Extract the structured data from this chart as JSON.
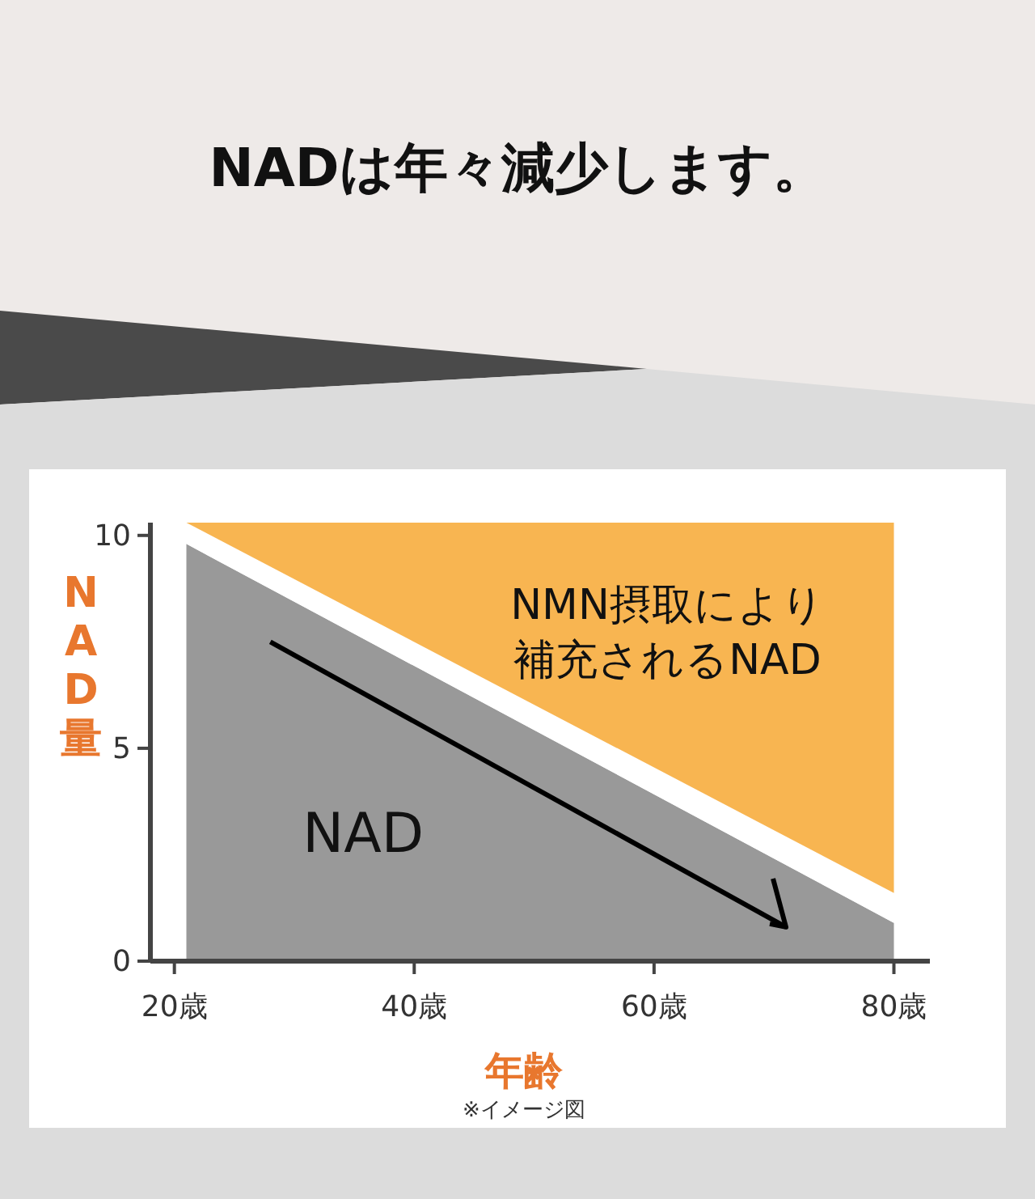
{
  "chart_data": {
    "type": "area",
    "title": "NADは年々減少します。",
    "xlabel": "年齢",
    "ylabel": "NAD量",
    "annotations": [
      "※イメージ図"
    ],
    "xlim": [
      18,
      83
    ],
    "ylim": [
      0,
      10.3
    ],
    "xticks": [
      {
        "value": 20,
        "label": "20歳"
      },
      {
        "value": 40,
        "label": "40歳"
      },
      {
        "value": 60,
        "label": "60歳"
      },
      {
        "value": 80,
        "label": "80歳"
      }
    ],
    "yticks": [
      0,
      5,
      10
    ],
    "grid": false,
    "legend": false,
    "stacked": true,
    "series": [
      {
        "name": "NAD",
        "color": "#999999",
        "x": [
          21,
          80
        ],
        "values": [
          9.8,
          0.9
        ]
      },
      {
        "color": "#ffffff",
        "x": [
          21,
          80
        ],
        "values": [
          0.5,
          0.7
        ]
      },
      {
        "name": "NMN摂取により補充されるNAD",
        "color": "#f8b551",
        "x": [
          21,
          80
        ],
        "values": [
          0,
          8.7
        ]
      },
      {
        "type": "line",
        "color": "#000000",
        "x": [
          28,
          71
        ],
        "values": [
          7.5,
          0.8
        ]
      }
    ]
  }
}
